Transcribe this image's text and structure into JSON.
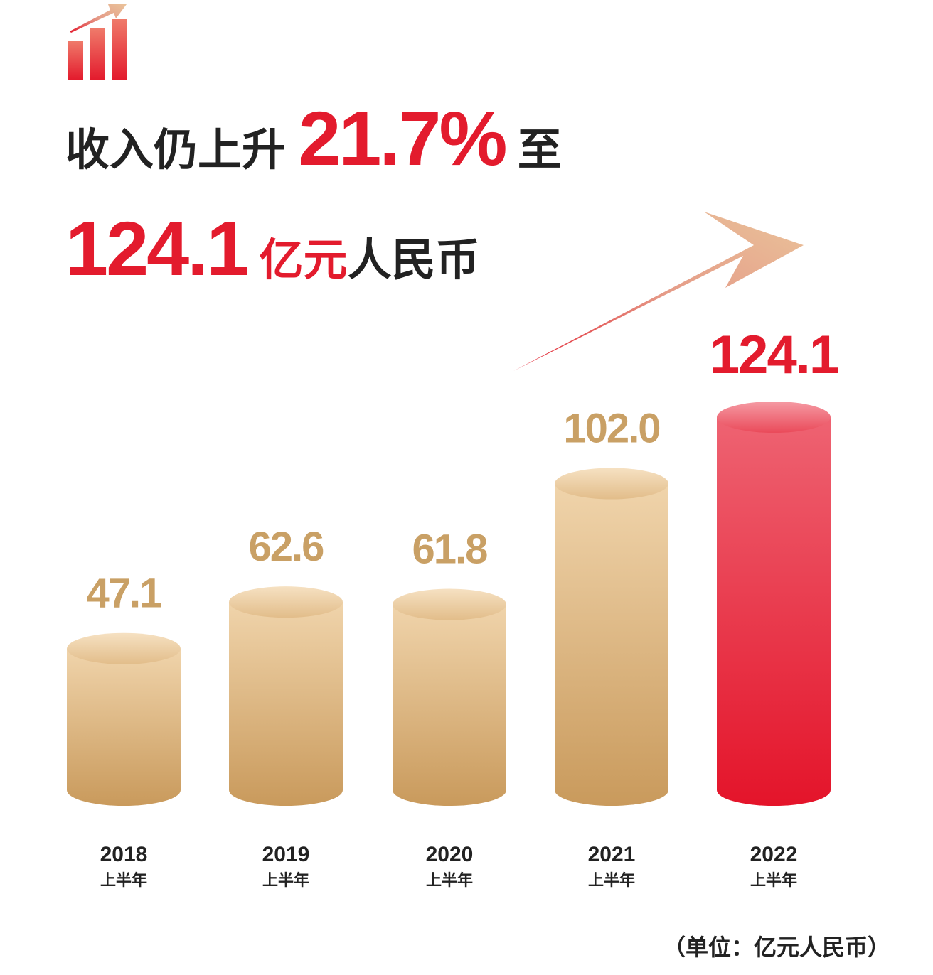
{
  "headline": {
    "line1_prefix": "收入仍上升",
    "growth_pct": "21.7%",
    "line1_suffix": "至",
    "amount": "124.1",
    "unit_red": "亿元",
    "unit_dark": "人民币"
  },
  "icons": [
    "bar-growth-icon",
    "arrow-up-right-icon"
  ],
  "colors": {
    "gold": "#c9a065",
    "gold_light": "#f0d4ab",
    "red": "#e31b2d",
    "red_light": "#f0606e",
    "text": "#222222"
  },
  "chart_data": {
    "type": "bar",
    "title": "收入仍上升21.7%至124.1亿元人民币",
    "categories": [
      "2018",
      "2019",
      "2020",
      "2021",
      "2022"
    ],
    "sublabels": [
      "上半年",
      "上半年",
      "上半年",
      "上半年",
      "上半年"
    ],
    "values": [
      47.1,
      62.6,
      61.8,
      102.0,
      124.1
    ],
    "value_labels": [
      "47.1",
      "62.6",
      "61.8",
      "102.0",
      "124.1"
    ],
    "highlight_index": 4,
    "ylabel": "",
    "xlabel": "",
    "ylim": [
      0,
      124.1
    ],
    "grid": false,
    "unit_note": "（单位：亿元人民币）"
  }
}
